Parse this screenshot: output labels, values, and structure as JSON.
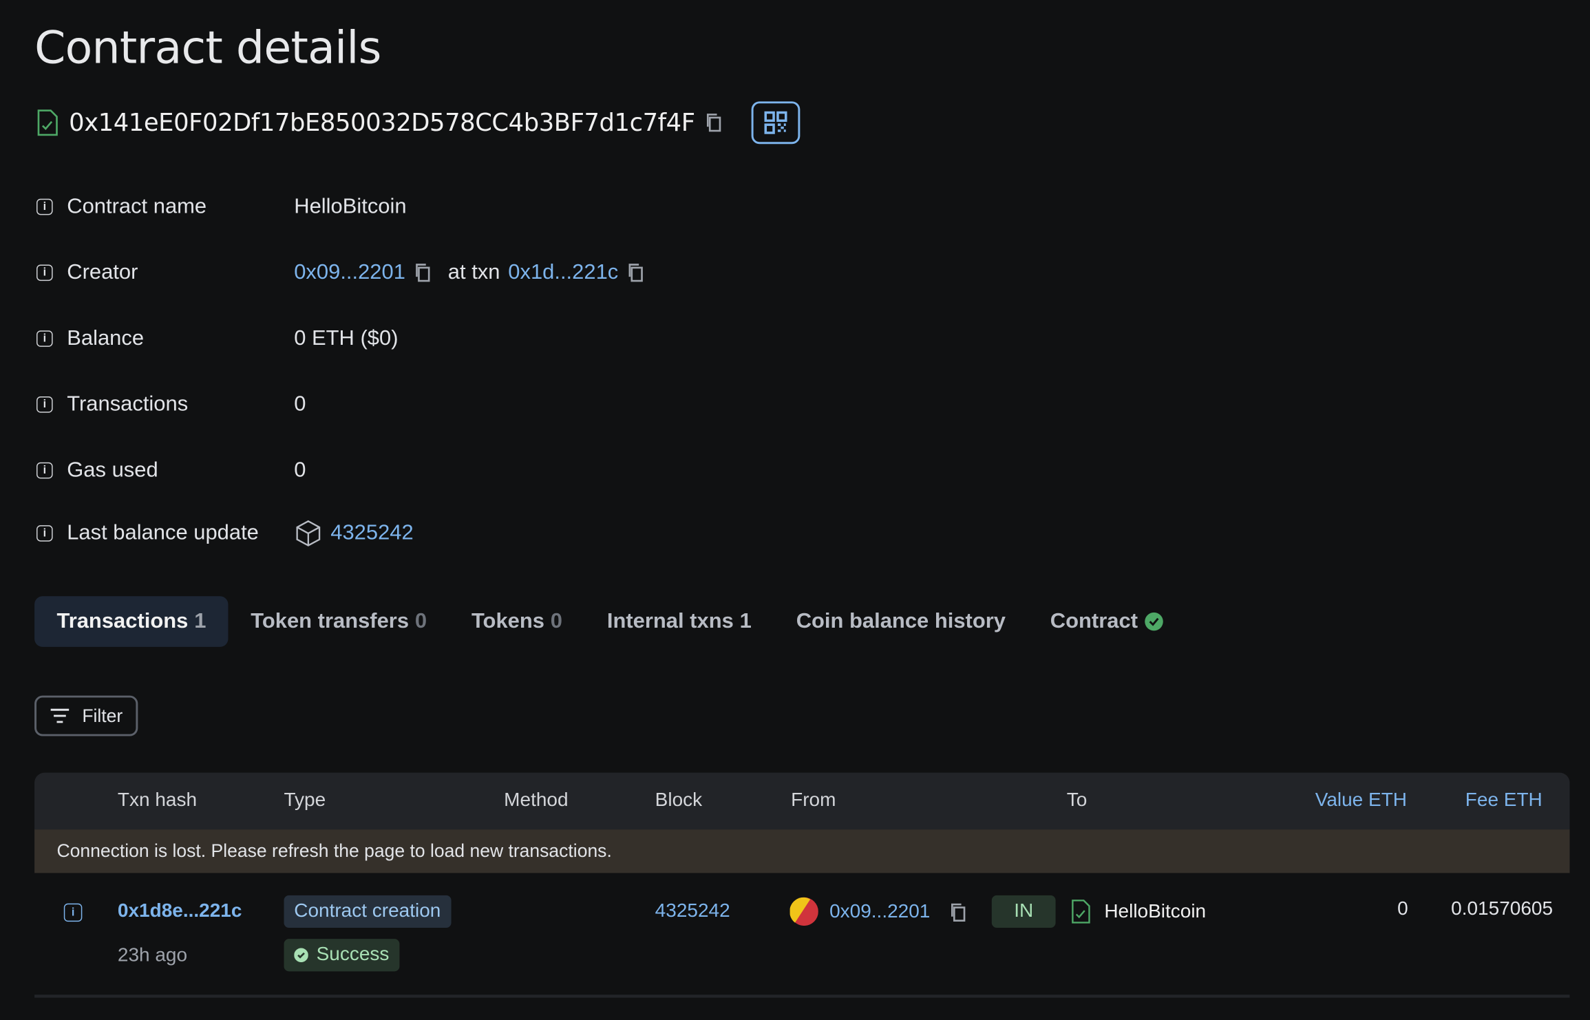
{
  "page": {
    "title": "Contract details"
  },
  "address": {
    "hash": "0x141eE0F02Df17bE850032D578CC4b3BF7d1c7f4F",
    "icon": "contract-file-icon"
  },
  "details": {
    "contract_name": {
      "label": "Contract name",
      "value": "HelloBitcoin"
    },
    "creator": {
      "label": "Creator",
      "address": "0x09...2201",
      "at_txn": "at txn",
      "txn": "0x1d...221c"
    },
    "balance": {
      "label": "Balance",
      "value": "0 ETH ($0)"
    },
    "transactions": {
      "label": "Transactions",
      "value": "0"
    },
    "gas_used": {
      "label": "Gas used",
      "value": "0"
    },
    "last_balance_update": {
      "label": "Last balance update",
      "value": "4325242"
    }
  },
  "tabs": [
    {
      "label": "Transactions",
      "count": "1"
    },
    {
      "label": "Token transfers",
      "count": "0"
    },
    {
      "label": "Tokens",
      "count": "0"
    },
    {
      "label": "Internal txns",
      "count": "1"
    },
    {
      "label": "Coin balance history",
      "count": ""
    },
    {
      "label": "Contract",
      "count": ""
    }
  ],
  "filter": {
    "label": "Filter"
  },
  "table": {
    "headers": [
      "Txn hash",
      "Type",
      "Method",
      "Block",
      "From",
      "To",
      "Value ETH",
      "Fee ETH"
    ],
    "notice": "Connection is lost. Please refresh the page to load new transactions.",
    "rows": [
      {
        "hash": "0x1d8e...221c",
        "age": "23h ago",
        "type": "Contract creation",
        "status": "Success",
        "method": "",
        "block": "4325242",
        "from": "0x09...2201",
        "direction": "IN",
        "to": "HelloBitcoin",
        "value": "0",
        "fee": "0.01570605"
      }
    ]
  },
  "colors": {
    "accent": "#7db4ec",
    "success": "#4ea866",
    "background": "#101112"
  }
}
